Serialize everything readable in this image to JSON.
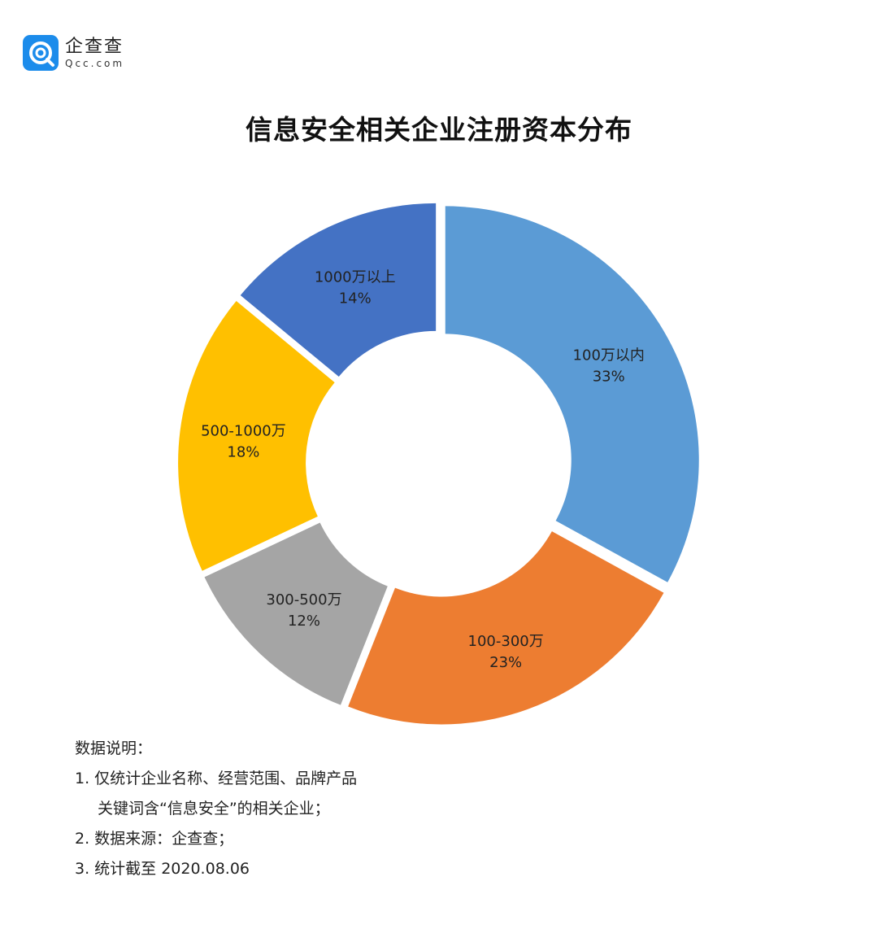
{
  "logo": {
    "name_cn": "企查查",
    "name_en": "Qcc.com",
    "brand_color": "#1C8CEB"
  },
  "chart_data": {
    "type": "pie",
    "title": "信息安全相关企业注册资本分布",
    "donut": true,
    "slices": [
      {
        "label": "100万以内",
        "value": 33,
        "value_label": "33%",
        "color": "#5B9BD5"
      },
      {
        "label": "100-300万",
        "value": 23,
        "value_label": "23%",
        "color": "#ED7D31"
      },
      {
        "label": "300-500万",
        "value": 12,
        "value_label": "12%",
        "color": "#A5A5A5"
      },
      {
        "label": "500-1000万",
        "value": 18,
        "value_label": "18%",
        "color": "#FFC000"
      },
      {
        "label": "1000万以上",
        "value": 14,
        "value_label": "14%",
        "color": "#4472C4"
      }
    ]
  },
  "notes": {
    "heading": "数据说明：",
    "line1": "1. 仅统计企业名称、经营范围、品牌产品",
    "line1b": "关键词含“信息安全”的相关企业；",
    "line2": "2. 数据来源：企查查；",
    "line3": "3. 统计截至 2020.08.06"
  }
}
